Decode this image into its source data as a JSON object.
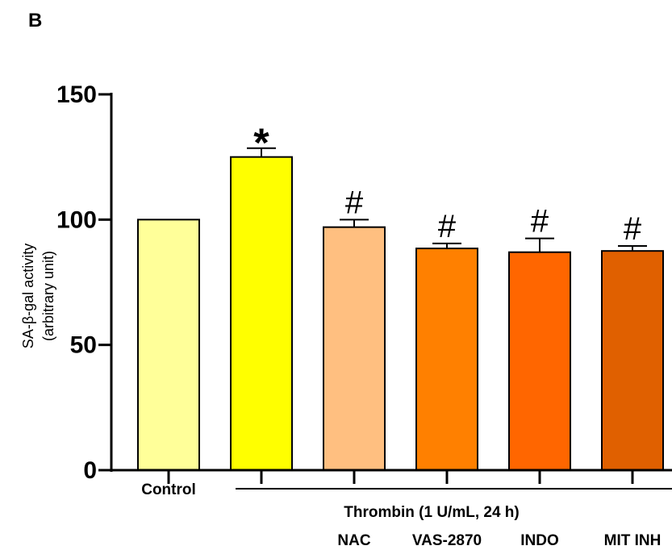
{
  "panel_label": "B",
  "chart_data": {
    "type": "bar",
    "title": "",
    "xlabel": "",
    "ylabel": [
      "SA-β-gal activity",
      "(arbitrary unit)"
    ],
    "ylim": [
      0,
      150
    ],
    "yticks": [
      0,
      50,
      100,
      150
    ],
    "grid": false,
    "categories": [
      "Control",
      "",
      "NAC",
      "VAS-2870",
      "INDO",
      "MIT INH"
    ],
    "values": [
      100,
      125,
      97,
      88.5,
      87,
      87.5
    ],
    "errors": [
      0,
      3.5,
      3,
      2,
      5.5,
      2
    ],
    "colors": [
      "#ffff99",
      "#ffff00",
      "#ffbf80",
      "#ff8000",
      "#ff6600",
      "#e06000"
    ],
    "significance": [
      "",
      "*",
      "#",
      "#",
      "#",
      "#"
    ],
    "group_label": "Thrombin (1 U/mL, 24 h)"
  }
}
